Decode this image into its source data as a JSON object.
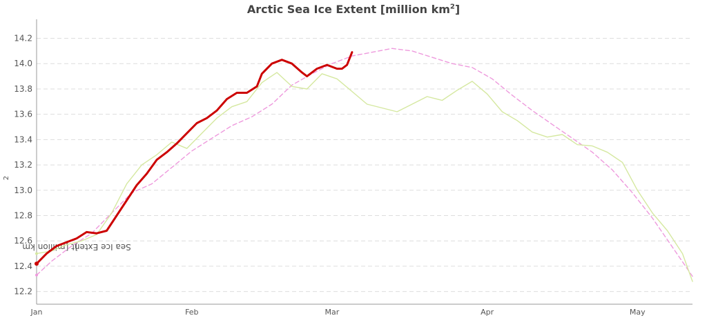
{
  "chart_data": {
    "type": "line",
    "title": "Arctic Sea Ice Extent [million km",
    "title_sup": "2",
    "title_suffix": "]",
    "ylabel": "Sea Ice Extent [million km",
    "ylabel_sup": "2",
    "ylabel_suffix": "]",
    "xlabel": "",
    "ylim": [
      12.1,
      14.35
    ],
    "xlim": [
      1,
      132
    ],
    "grid": true,
    "x_ticks": [
      {
        "label": "Jan",
        "day": 1
      },
      {
        "label": "Feb",
        "day": 32
      },
      {
        "label": "Mar",
        "day": 60
      },
      {
        "label": "Apr",
        "day": 91
      },
      {
        "label": "May",
        "day": 121
      }
    ],
    "y_ticks": [
      12.2,
      12.4,
      12.6,
      12.8,
      13.0,
      13.2,
      13.4,
      13.6,
      13.8,
      14.0,
      14.2
    ],
    "series": [
      {
        "color": "#ee99dd",
        "style": "dashed",
        "points": [
          [
            1,
            12.33
          ],
          [
            4,
            12.44
          ],
          [
            8,
            12.56
          ],
          [
            12,
            12.66
          ],
          [
            16,
            12.82
          ],
          [
            20,
            12.98
          ],
          [
            24,
            13.05
          ],
          [
            28,
            13.18
          ],
          [
            32,
            13.31
          ],
          [
            36,
            13.41
          ],
          [
            40,
            13.51
          ],
          [
            44,
            13.58
          ],
          [
            48,
            13.68
          ],
          [
            52,
            13.83
          ],
          [
            56,
            13.92
          ],
          [
            60,
            14.0
          ],
          [
            64,
            14.06
          ],
          [
            68,
            14.09
          ],
          [
            72,
            14.12
          ],
          [
            76,
            14.1
          ],
          [
            80,
            14.05
          ],
          [
            84,
            14.0
          ],
          [
            88,
            13.97
          ],
          [
            92,
            13.88
          ],
          [
            96,
            13.75
          ],
          [
            100,
            13.63
          ],
          [
            104,
            13.52
          ],
          [
            108,
            13.41
          ],
          [
            112,
            13.3
          ],
          [
            116,
            13.16
          ],
          [
            120,
            12.98
          ],
          [
            124,
            12.78
          ],
          [
            128,
            12.55
          ],
          [
            132,
            12.32
          ]
        ]
      },
      {
        "color": "#d5e8a0",
        "style": "solid",
        "points": [
          [
            1,
            12.5
          ],
          [
            4,
            12.52
          ],
          [
            7,
            12.57
          ],
          [
            10,
            12.6
          ],
          [
            13,
            12.65
          ],
          [
            16,
            12.82
          ],
          [
            19,
            13.05
          ],
          [
            22,
            13.2
          ],
          [
            25,
            13.28
          ],
          [
            28,
            13.38
          ],
          [
            31,
            13.33
          ],
          [
            34,
            13.45
          ],
          [
            37,
            13.57
          ],
          [
            40,
            13.66
          ],
          [
            43,
            13.7
          ],
          [
            46,
            13.85
          ],
          [
            49,
            13.93
          ],
          [
            52,
            13.82
          ],
          [
            55,
            13.8
          ],
          [
            58,
            13.92
          ],
          [
            61,
            13.88
          ],
          [
            64,
            13.78
          ],
          [
            67,
            13.68
          ],
          [
            70,
            13.65
          ],
          [
            73,
            13.62
          ],
          [
            76,
            13.68
          ],
          [
            79,
            13.74
          ],
          [
            82,
            13.71
          ],
          [
            85,
            13.79
          ],
          [
            88,
            13.86
          ],
          [
            91,
            13.76
          ],
          [
            94,
            13.62
          ],
          [
            97,
            13.55
          ],
          [
            100,
            13.46
          ],
          [
            103,
            13.42
          ],
          [
            106,
            13.44
          ],
          [
            109,
            13.36
          ],
          [
            112,
            13.35
          ],
          [
            115,
            13.3
          ],
          [
            118,
            13.22
          ],
          [
            121,
            13.0
          ],
          [
            124,
            12.82
          ],
          [
            127,
            12.68
          ],
          [
            130,
            12.5
          ],
          [
            132,
            12.28
          ]
        ]
      },
      {
        "color": "#cc0000",
        "style": "solid",
        "bold": true,
        "points": [
          [
            1,
            12.42
          ],
          [
            3,
            12.5
          ],
          [
            5,
            12.56
          ],
          [
            7,
            12.59
          ],
          [
            9,
            12.62
          ],
          [
            11,
            12.67
          ],
          [
            13,
            12.66
          ],
          [
            15,
            12.68
          ],
          [
            17,
            12.8
          ],
          [
            19,
            12.92
          ],
          [
            21,
            13.04
          ],
          [
            23,
            13.13
          ],
          [
            25,
            13.24
          ],
          [
            27,
            13.3
          ],
          [
            29,
            13.37
          ],
          [
            31,
            13.45
          ],
          [
            33,
            13.53
          ],
          [
            35,
            13.57
          ],
          [
            37,
            13.63
          ],
          [
            39,
            13.72
          ],
          [
            41,
            13.77
          ],
          [
            43,
            13.77
          ],
          [
            45,
            13.82
          ],
          [
            46,
            13.92
          ],
          [
            48,
            14.0
          ],
          [
            50,
            14.03
          ],
          [
            52,
            14.0
          ],
          [
            54,
            13.93
          ],
          [
            55,
            13.9
          ],
          [
            57,
            13.96
          ],
          [
            59,
            13.99
          ],
          [
            61,
            13.96
          ],
          [
            62,
            13.96
          ],
          [
            63,
            13.99
          ],
          [
            64,
            14.09
          ]
        ]
      }
    ]
  }
}
